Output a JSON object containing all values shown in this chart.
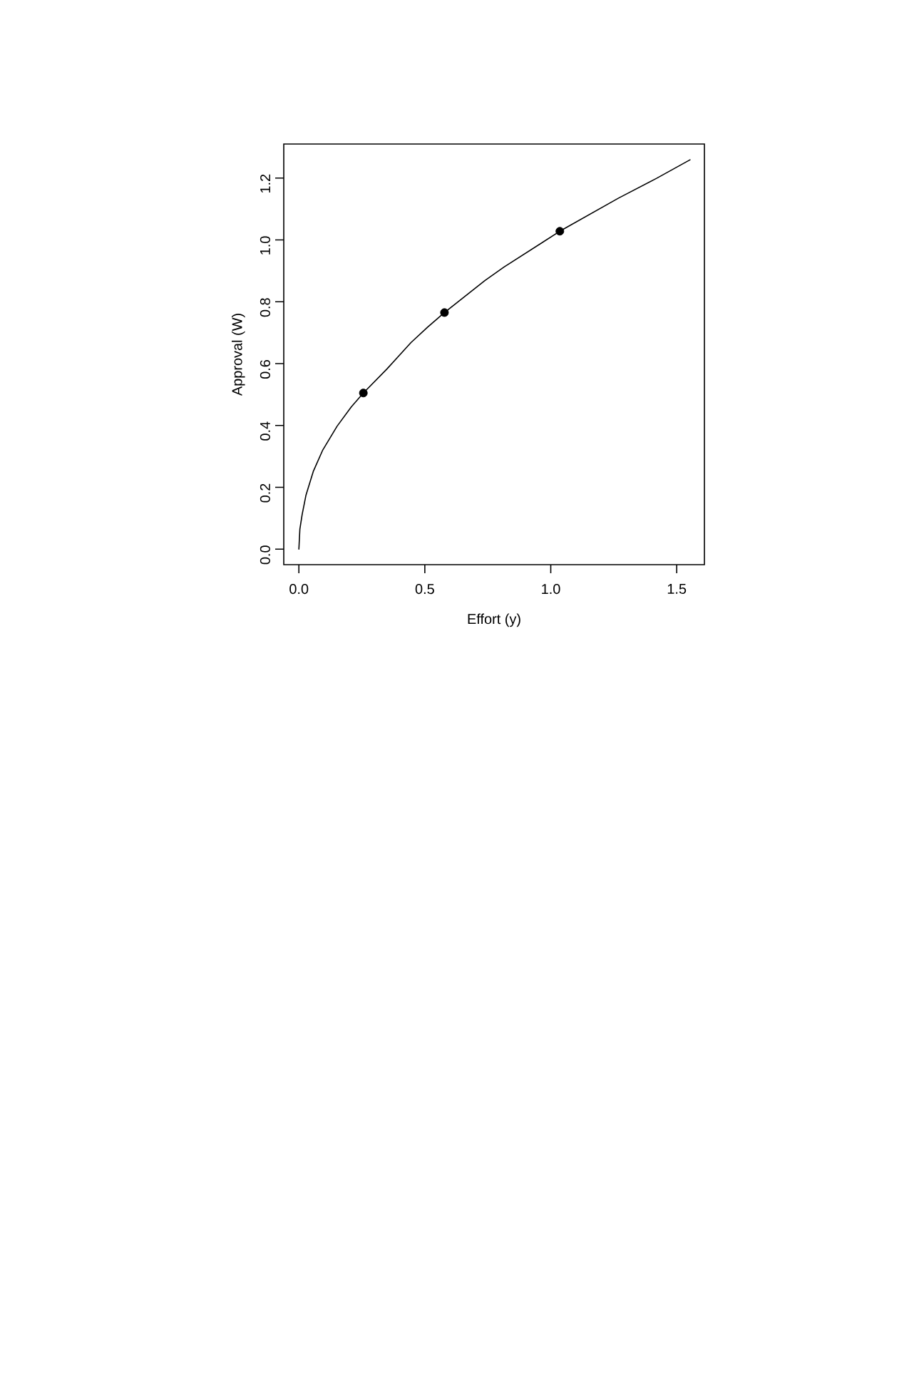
{
  "chart_data": {
    "type": "line",
    "xlabel": "Effort (y)",
    "ylabel": "Approval (W)",
    "xlim": [
      -0.06,
      1.61
    ],
    "ylim": [
      -0.05,
      1.31
    ],
    "xticks": [
      {
        "value": 0,
        "label": "0.0"
      },
      {
        "value": 0.5,
        "label": "0.5"
      },
      {
        "value": 1,
        "label": "1.0"
      },
      {
        "value": 1.5,
        "label": "1.5"
      }
    ],
    "yticks": [
      {
        "value": 0,
        "label": "0.0"
      },
      {
        "value": 0.2,
        "label": "0.2"
      },
      {
        "value": 0.4,
        "label": "0.4"
      },
      {
        "value": 0.6,
        "label": "0.6"
      },
      {
        "value": 0.8,
        "label": "0.8"
      },
      {
        "value": 1,
        "label": "1.0"
      },
      {
        "value": 1.2,
        "label": "1.2"
      }
    ],
    "series": [
      {
        "color": "#000000",
        "line_style": "solid",
        "x": [
          0,
          0.004,
          0.013,
          0.028,
          0.057,
          0.095,
          0.152,
          0.208,
          0.256,
          0.35,
          0.445,
          0.511,
          0.578,
          0.739,
          0.814,
          1.036,
          1.269,
          1.42,
          1.553
        ],
        "values": [
          0,
          0.065,
          0.112,
          0.174,
          0.251,
          0.321,
          0.398,
          0.46,
          0.505,
          0.583,
          0.668,
          0.718,
          0.765,
          0.869,
          0.912,
          1.028,
          1.135,
          1.199,
          1.259
        ]
      },
      {
        "type": "scatter",
        "color": "#000000",
        "marker": "circle",
        "x": [
          0.256,
          0.578,
          1.036
        ],
        "values": [
          0.505,
          0.765,
          1.028
        ]
      }
    ]
  }
}
